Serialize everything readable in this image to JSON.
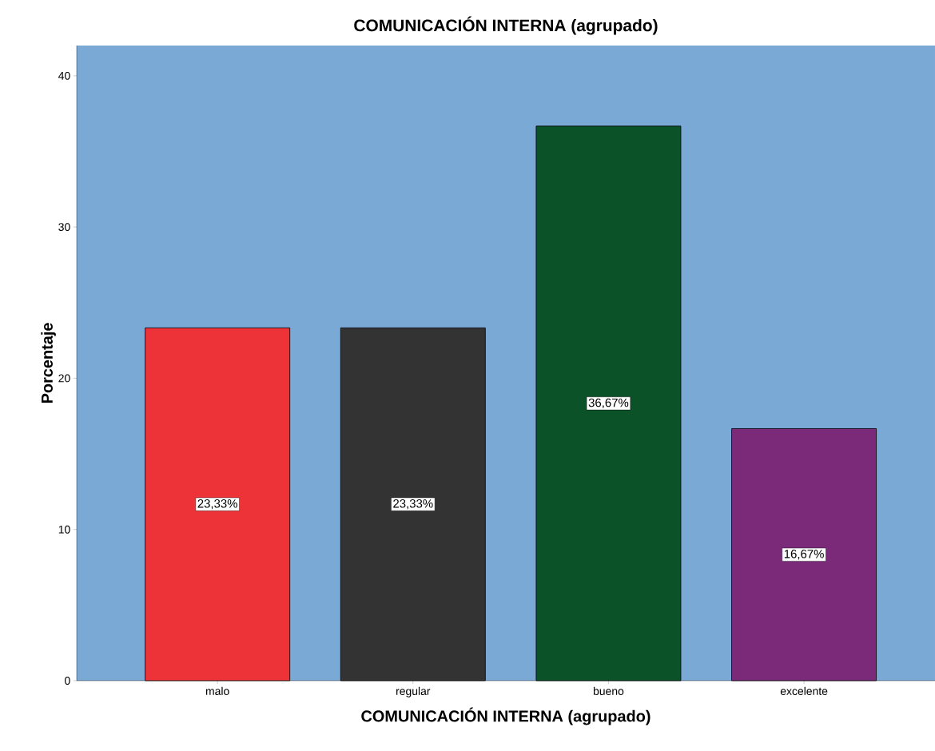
{
  "chart_data": {
    "type": "bar",
    "title": "COMUNICACIÓN INTERNA (agrupado)",
    "xlabel": "COMUNICACIÓN INTERNA (agrupado)",
    "ylabel": "Porcentaje",
    "categories": [
      "malo",
      "regular",
      "bueno",
      "excelente"
    ],
    "values": [
      23.33,
      23.33,
      36.67,
      16.67
    ],
    "colors": [
      "#ee3338",
      "#333333",
      "#0b5229",
      "#7b2a7a"
    ],
    "value_labels": [
      "23,33%",
      "23,33%",
      "36,67%",
      "16,67%"
    ],
    "ylim": [
      0,
      42
    ],
    "yticks": [
      0,
      10,
      20,
      30,
      40
    ],
    "grid": false
  }
}
